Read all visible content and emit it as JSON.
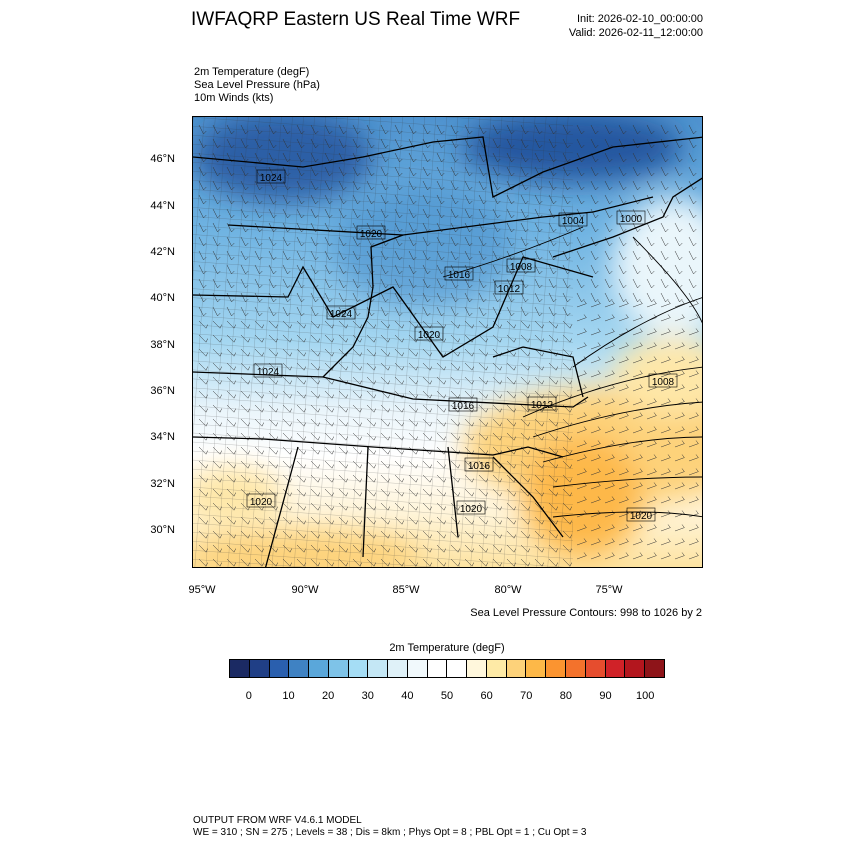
{
  "header": {
    "title": "IWFAQRP Eastern US Real Time WRF",
    "init": "Init: 2026-02-10_00:00:00",
    "valid": "Valid: 2026-02-11_12:00:00"
  },
  "fields": [
    "2m Temperature   (degF)",
    "Sea Level Pressure   (hPa)",
    "10m Winds   (kts)"
  ],
  "map": {
    "lat_ticks": [
      "46°N",
      "44°N",
      "42°N",
      "40°N",
      "38°N",
      "36°N",
      "34°N",
      "32°N",
      "30°N"
    ],
    "lon_ticks": [
      "95°W",
      "90°W",
      "85°W",
      "80°W",
      "75°W"
    ],
    "pressure_labels": [
      "1024",
      "1020",
      "1016",
      "1008",
      "1012",
      "1004",
      "1000",
      "1024",
      "1020",
      "1024",
      "1008",
      "1016",
      "1012",
      "1016",
      "1020",
      "1020",
      "1020"
    ],
    "slp_note": "Sea Level Pressure Contours: 998 to 1026 by 2"
  },
  "colorbar": {
    "title": "2m Temperature  (degF)",
    "labels": [
      "0",
      "10",
      "20",
      "30",
      "40",
      "50",
      "60",
      "70",
      "80",
      "90",
      "100"
    ],
    "colors": [
      "#1b2a63",
      "#203f86",
      "#2a5fae",
      "#3f82c3",
      "#5aa7da",
      "#7ec3e8",
      "#a5ddf5",
      "#c4e7f5",
      "#dff1f8",
      "#f1f9fc",
      "#ffffff",
      "#ffffff",
      "#fff7dc",
      "#feeaa6",
      "#fdd27a",
      "#fdb848",
      "#fb9430",
      "#f3722c",
      "#e64d2e",
      "#d02228",
      "#b3161e",
      "#8e1419"
    ]
  },
  "footer": {
    "line1": "OUTPUT FROM WRF V4.6.1 MODEL",
    "line2": "WE = 310 ; SN = 275 ; Levels = 38 ; Dis = 8km ; Phys Opt = 8 ; PBL Opt = 1 ; Cu Opt = 3"
  }
}
